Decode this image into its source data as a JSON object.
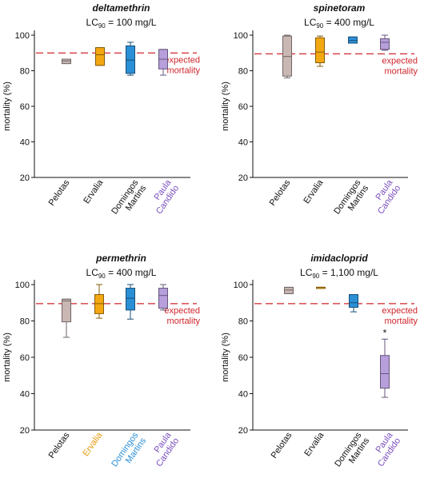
{
  "expected_mortality_label": [
    "expected",
    "mortality"
  ],
  "colors": {
    "Pelotas": "#c9b7b4",
    "Ervalia": "#f3a712",
    "Domingos Martins": "#2b8fd6",
    "Paula Candido": "#b79fdc",
    "expected_line": "#d0262d",
    "Pelotas_text": "#111111",
    "Ervalia_text": "#e59a0c",
    "Domingos Martins_text": "#2b8fd6",
    "Paula Candido_text": "#7a4fbf"
  },
  "chart_data": [
    {
      "type": "box",
      "title": "deltamethrin",
      "lc_prefix": "LC",
      "lc_sub": "90",
      "lc_value": " = 100 mg/L",
      "ylabel": "mortality (%)",
      "ylim": [
        20,
        100
      ],
      "yticks": [
        "20",
        "40",
        "60",
        "80",
        "100"
      ],
      "expected_mortality": 90,
      "categories": [
        "Pelotas",
        "Ervalia",
        "Domingos Martins",
        "Paula Candido"
      ],
      "category_lines": [
        [
          "Pelotas"
        ],
        [
          "Ervalia"
        ],
        [
          "Domingos",
          "Martins"
        ],
        [
          "Paula",
          "Candido"
        ]
      ],
      "category_colored": [
        false,
        false,
        false,
        true
      ],
      "boxes": [
        {
          "min": 84,
          "q1": 84,
          "median": 85.5,
          "q3": 86.5,
          "max": 86.5
        },
        {
          "min": 83,
          "q1": 83,
          "median": 89,
          "q3": 93,
          "max": 93
        },
        {
          "min": 77.5,
          "q1": 78.5,
          "median": 86,
          "q3": 94,
          "max": 96
        },
        {
          "min": 77.5,
          "q1": 81,
          "median": 86.5,
          "q3": 92,
          "max": 92
        }
      ],
      "show_annotation": true,
      "star_index": -1,
      "star_label": ""
    },
    {
      "type": "box",
      "title": "spinetoram",
      "lc_prefix": "LC",
      "lc_sub": "90",
      "lc_value": " = 400 mg/L",
      "ylabel": "mortality (%)",
      "ylim": [
        20,
        100
      ],
      "yticks": [
        "20",
        "40",
        "60",
        "80",
        "100"
      ],
      "expected_mortality": 89.5,
      "categories": [
        "Pelotas",
        "Ervalia",
        "Domingos Martins",
        "Paula Candido"
      ],
      "category_lines": [
        [
          "Pelotas"
        ],
        [
          "Ervalia"
        ],
        [
          "Domingos",
          "Martins"
        ],
        [
          "Paula",
          "Candido"
        ]
      ],
      "category_colored": [
        false,
        false,
        false,
        true
      ],
      "boxes": [
        {
          "min": 76,
          "q1": 77,
          "median": 88,
          "q3": 99.5,
          "max": 100
        },
        {
          "min": 82.5,
          "q1": 84.5,
          "median": 90.5,
          "q3": 98.5,
          "max": 99.5
        },
        {
          "min": 95.5,
          "q1": 95.5,
          "median": 97,
          "q3": 99,
          "max": 99
        },
        {
          "min": 91.5,
          "q1": 92,
          "median": 96,
          "q3": 98,
          "max": 100
        }
      ],
      "show_annotation": true,
      "star_index": -1,
      "star_label": ""
    },
    {
      "type": "box",
      "title": "permethrin",
      "lc_prefix": "LC",
      "lc_sub": "90",
      "lc_value": " = 400 mg/L",
      "ylabel": "mortality (%)",
      "ylim": [
        20,
        100
      ],
      "yticks": [
        "20",
        "40",
        "60",
        "80",
        "100"
      ],
      "expected_mortality": 89.5,
      "categories": [
        "Pelotas",
        "Ervalia",
        "Domingos Martins",
        "Paula Candido"
      ],
      "category_lines": [
        [
          "Pelotas"
        ],
        [
          "Ervalia"
        ],
        [
          "Domingos",
          "Martins"
        ],
        [
          "Paula",
          "Candido"
        ]
      ],
      "category_colored": [
        false,
        true,
        true,
        true
      ],
      "boxes": [
        {
          "min": 71,
          "q1": 79.5,
          "median": 91,
          "q3": 92,
          "max": 92
        },
        {
          "min": 81.5,
          "q1": 84,
          "median": 89.5,
          "q3": 94.5,
          "max": 100
        },
        {
          "min": 81,
          "q1": 86,
          "median": 92.5,
          "q3": 98,
          "max": 100
        },
        {
          "min": 86,
          "q1": 87,
          "median": 94,
          "q3": 98,
          "max": 100
        }
      ],
      "show_annotation": true,
      "star_index": -1,
      "star_label": ""
    },
    {
      "type": "box",
      "title": "imidacloprid",
      "lc_prefix": "LC",
      "lc_sub": "90",
      "lc_value": " = 1,100 mg/L",
      "ylabel": "mortality (%)",
      "ylim": [
        20,
        100
      ],
      "yticks": [
        "20",
        "40",
        "60",
        "80",
        "100"
      ],
      "expected_mortality": 89.5,
      "categories": [
        "Pelotas",
        "Ervalia",
        "Domingos Martins",
        "Paula Candido"
      ],
      "category_lines": [
        [
          "Pelotas"
        ],
        [
          "Ervalia"
        ],
        [
          "Domingos",
          "Martins"
        ],
        [
          "Paula",
          "Candido"
        ]
      ],
      "category_colored": [
        false,
        false,
        false,
        true
      ],
      "boxes": [
        {
          "min": 95,
          "q1": 95,
          "median": 97,
          "q3": 98.5,
          "max": 98.5
        },
        {
          "min": 98.5,
          "q1": 98.5,
          "median": 98.5,
          "q3": 98.5,
          "max": 98.5
        },
        {
          "min": 85,
          "q1": 87.5,
          "median": 90,
          "q3": 94.5,
          "max": 94.5
        },
        {
          "min": 38,
          "q1": 43,
          "median": 51,
          "q3": 61,
          "max": 70
        }
      ],
      "show_annotation": true,
      "star_index": 3,
      "star_label": "*"
    }
  ]
}
